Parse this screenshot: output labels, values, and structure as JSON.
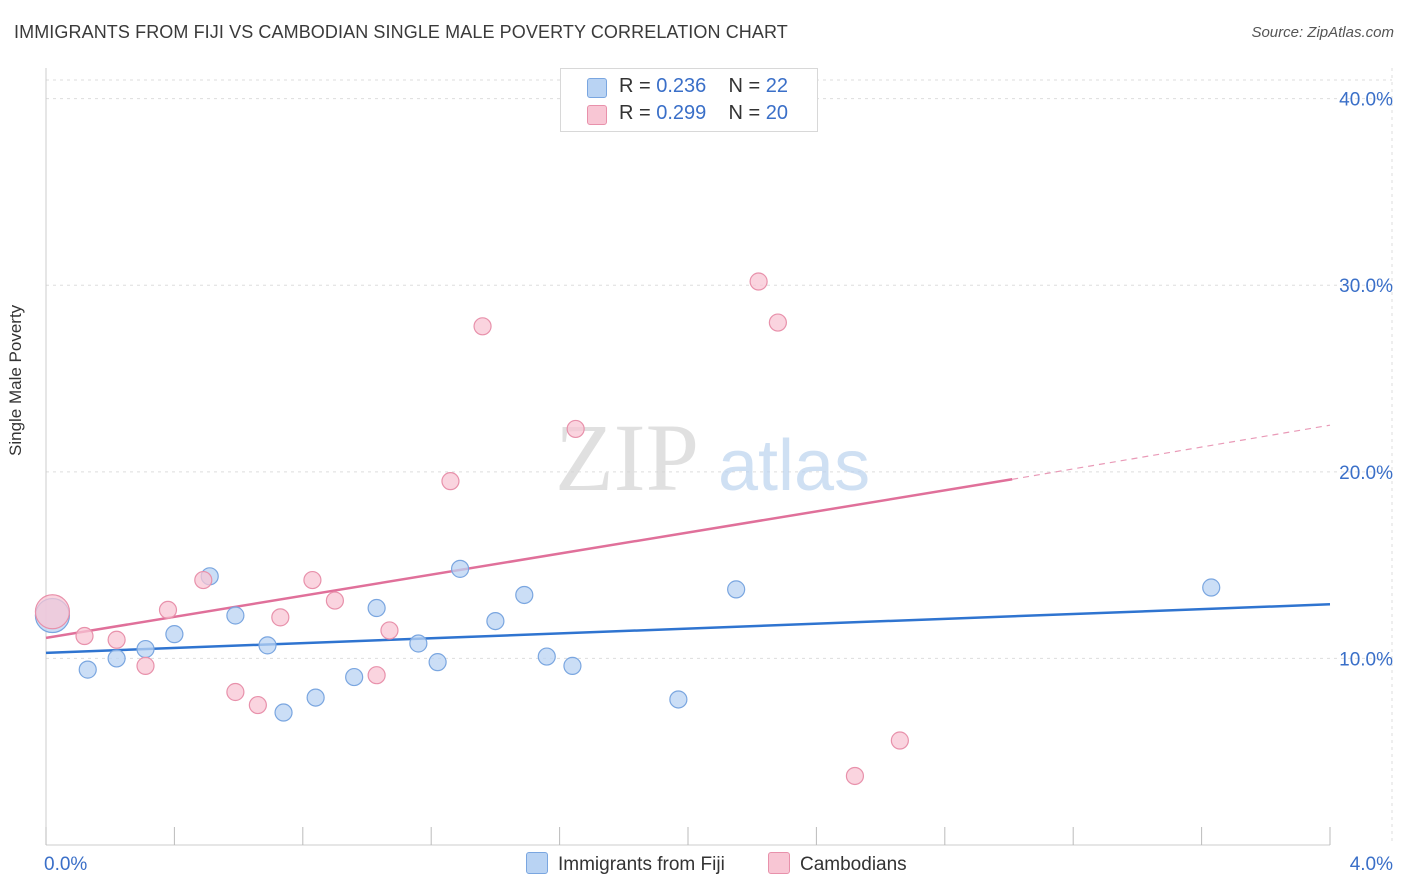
{
  "title": "IMMIGRANTS FROM FIJI VS CAMBODIAN SINGLE MALE POVERTY CORRELATION CHART",
  "source": "Source: ZipAtlas.com",
  "legend": {
    "rows": [
      {
        "r_label": "R = ",
        "r_value": "0.236",
        "n_label": "N = ",
        "n_value": "22"
      },
      {
        "r_label": "R = ",
        "r_value": "0.299",
        "n_label": "N = ",
        "n_value": "20"
      }
    ]
  },
  "watermark": {
    "zip": "ZIP",
    "atlas": "atlas"
  },
  "colors": {
    "blue_fill": "#b9d3f3",
    "blue_stroke": "#7aa6e0",
    "blue_line": "#2f74d0",
    "pink_fill": "#f8c6d4",
    "pink_stroke": "#e891ab",
    "pink_line": "#e0709a",
    "tick_text": "#3a6fc8",
    "grid": "#dddddd"
  },
  "chart_data": {
    "type": "scatter",
    "xlabel": "",
    "ylabel": "Single Male Poverty",
    "xlim": [
      0.0,
      4.0
    ],
    "ylim": [
      0.0,
      41.0
    ],
    "x_tick_labels": [
      "0.0%",
      "4.0%"
    ],
    "y_ticks": [
      10,
      20,
      30,
      40
    ],
    "y_tick_labels": [
      "10.0%",
      "20.0%",
      "30.0%",
      "40.0%"
    ],
    "grid": true,
    "legend_position": "bottom-center",
    "series": [
      {
        "name": "Immigrants from Fiji",
        "color": "#b9d3f3",
        "points": [
          {
            "x": 0.02,
            "y": 12.3,
            "size": "large"
          },
          {
            "x": 0.13,
            "y": 9.4
          },
          {
            "x": 0.22,
            "y": 10.0
          },
          {
            "x": 0.31,
            "y": 10.5
          },
          {
            "x": 0.4,
            "y": 11.3
          },
          {
            "x": 0.51,
            "y": 14.4
          },
          {
            "x": 0.59,
            "y": 12.3
          },
          {
            "x": 0.69,
            "y": 10.7
          },
          {
            "x": 0.74,
            "y": 7.1
          },
          {
            "x": 0.84,
            "y": 7.9
          },
          {
            "x": 0.96,
            "y": 9.0
          },
          {
            "x": 1.03,
            "y": 12.7
          },
          {
            "x": 1.16,
            "y": 10.8
          },
          {
            "x": 1.22,
            "y": 9.8
          },
          {
            "x": 1.29,
            "y": 14.8
          },
          {
            "x": 1.4,
            "y": 12.0
          },
          {
            "x": 1.49,
            "y": 13.4
          },
          {
            "x": 1.56,
            "y": 10.1
          },
          {
            "x": 1.64,
            "y": 9.6
          },
          {
            "x": 1.97,
            "y": 7.8
          },
          {
            "x": 2.15,
            "y": 13.7
          },
          {
            "x": 3.63,
            "y": 13.8
          }
        ],
        "trend": {
          "x": [
            0.0,
            4.0
          ],
          "y": [
            10.3,
            12.9
          ]
        }
      },
      {
        "name": "Cambodians",
        "color": "#f8c6d4",
        "points": [
          {
            "x": 0.02,
            "y": 12.5,
            "size": "large"
          },
          {
            "x": 0.12,
            "y": 11.2
          },
          {
            "x": 0.22,
            "y": 11.0
          },
          {
            "x": 0.31,
            "y": 9.6
          },
          {
            "x": 0.38,
            "y": 12.6
          },
          {
            "x": 0.49,
            "y": 14.2
          },
          {
            "x": 0.59,
            "y": 8.2
          },
          {
            "x": 0.66,
            "y": 7.5
          },
          {
            "x": 0.73,
            "y": 12.2
          },
          {
            "x": 0.83,
            "y": 14.2
          },
          {
            "x": 0.9,
            "y": 13.1
          },
          {
            "x": 1.03,
            "y": 9.1
          },
          {
            "x": 1.07,
            "y": 11.5
          },
          {
            "x": 1.26,
            "y": 19.5
          },
          {
            "x": 1.36,
            "y": 27.8
          },
          {
            "x": 1.65,
            "y": 22.3
          },
          {
            "x": 2.22,
            "y": 30.2
          },
          {
            "x": 2.28,
            "y": 28.0
          },
          {
            "x": 2.52,
            "y": 3.7
          },
          {
            "x": 2.66,
            "y": 5.6
          }
        ],
        "trend": {
          "x": [
            0.0,
            3.01
          ],
          "y": [
            11.1,
            19.6
          ]
        },
        "trend_dashed": {
          "x": [
            3.01,
            4.0
          ],
          "y": [
            19.6,
            22.5
          ]
        }
      }
    ]
  }
}
